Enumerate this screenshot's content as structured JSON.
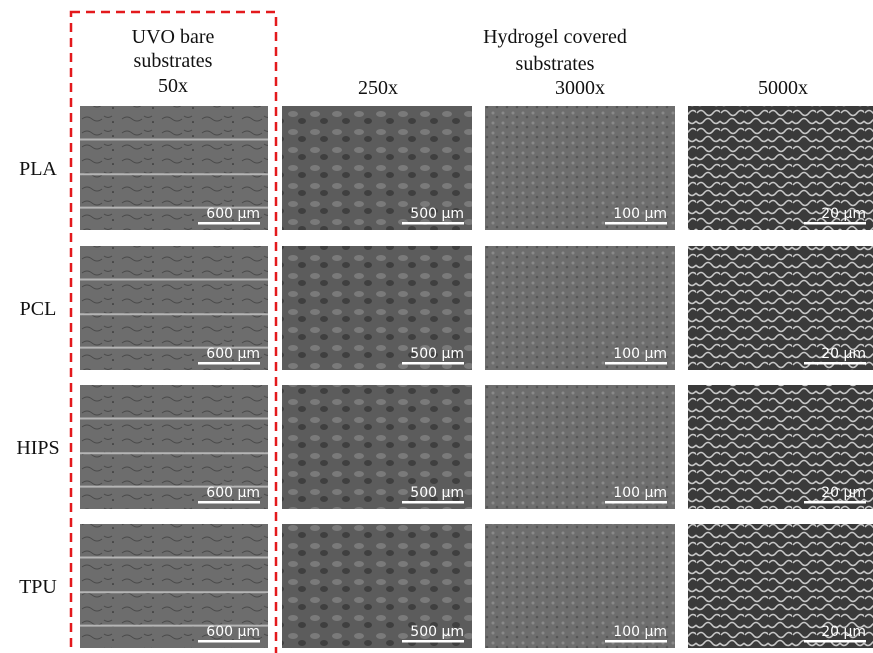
{
  "header": {
    "left": {
      "lines": [
        "UVO bare",
        "substrates"
      ],
      "magnification": "50x"
    },
    "right": {
      "lines": [
        "Hydrogel covered",
        "substrates"
      ],
      "magnifications": [
        "250x",
        "3000x",
        "5000x"
      ]
    }
  },
  "rows": [
    {
      "label": "PLA",
      "scale_bars": [
        "600 µm",
        "500 µm",
        "100 µm",
        "20 µm"
      ]
    },
    {
      "label": "PCL",
      "scale_bars": [
        "600 µm",
        "500 µm",
        "100 µm",
        "20 µm"
      ]
    },
    {
      "label": "HIPS",
      "scale_bars": [
        "600 µm",
        "500 µm",
        "100 µm",
        "20 µm"
      ]
    },
    {
      "label": "TPU",
      "scale_bars": [
        "600 µm",
        "500 µm",
        "100 µm",
        "20 µm"
      ]
    }
  ]
}
